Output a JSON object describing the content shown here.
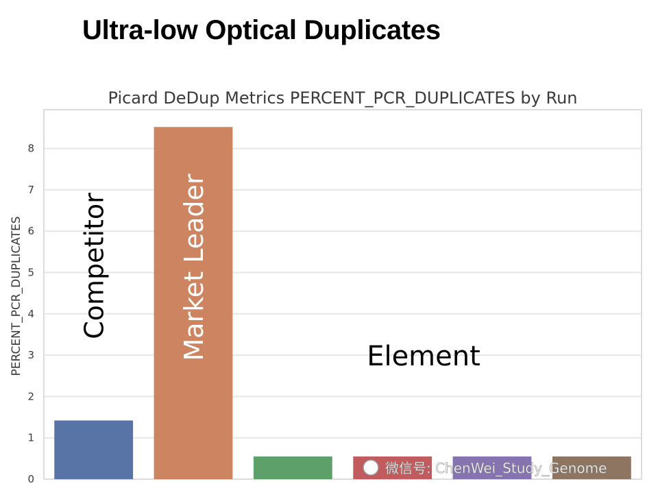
{
  "slide_title": "Ultra-low Optical Duplicates",
  "chart_data": {
    "type": "bar",
    "title": "Picard DeDup Metrics PERCENT_PCR_DUPLICATES by Run",
    "xlabel": "",
    "ylabel": "PERCENT_PCR_DUPLICATES",
    "ylim": [
      0,
      9
    ],
    "yticks": [
      0,
      1,
      2,
      3,
      4,
      5,
      6,
      7,
      8
    ],
    "grid": true,
    "categories": [
      "",
      "",
      "",
      "",
      "",
      ""
    ],
    "values": [
      1.42,
      8.52,
      0.55,
      0.55,
      0.55,
      0.55
    ],
    "colors": [
      "#5874a7",
      "#cc8560",
      "#5ea06a",
      "#c15b5e",
      "#8674b0",
      "#8e7562"
    ],
    "bar_labels": [
      "Competitor",
      "Market Leader",
      "",
      "",
      "",
      ""
    ],
    "annotation": "Element"
  },
  "watermark": "微信号: ChenWei_Study_Genome"
}
